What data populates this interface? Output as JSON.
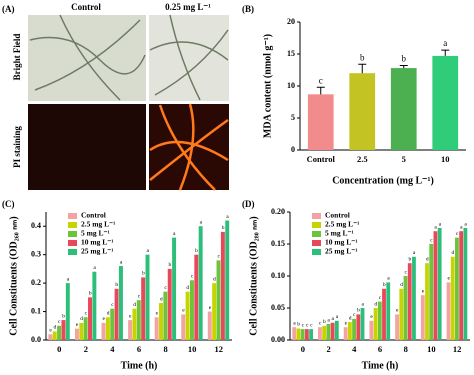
{
  "panel_a": {
    "panel_label": "(A)",
    "columns": [
      "Control",
      "0.25 mg L⁻¹"
    ],
    "rows": [
      "Bright Field",
      "PI staining"
    ]
  },
  "chart_data": [
    {
      "type": "bar",
      "panel_label": "(B)",
      "y_label": "MDA content (nmol g⁻¹)",
      "x_label": "Concentration (mg L⁻¹)",
      "categories": [
        "Control",
        "2.5",
        "5",
        "10"
      ],
      "values": [
        8.7,
        12.0,
        12.8,
        14.7
      ],
      "errors": [
        1.1,
        1.4,
        0.4,
        0.9
      ],
      "letters": [
        "c",
        "b",
        "b",
        "a"
      ],
      "colors": [
        "#f28b8b",
        "#c3c323",
        "#4cb050",
        "#2fcc7a"
      ],
      "ylim": [
        0,
        20
      ],
      "yticks": [
        0,
        5,
        10,
        15,
        20
      ]
    },
    {
      "type": "grouped_bar",
      "panel_label": "(C)",
      "y_label": "Cell Constituents (OD₂₆₀ ₙₘ)",
      "x_label": "Time (h)",
      "categories": [
        "0",
        "2",
        "4",
        "6",
        "8",
        "10",
        "12"
      ],
      "series": [
        {
          "name": "Control",
          "color": "#f4a3a3",
          "values": [
            0.02,
            0.04,
            0.06,
            0.07,
            0.08,
            0.09,
            0.1
          ],
          "letters": [
            "e",
            "e",
            "e",
            "e",
            "e",
            "e",
            "e"
          ]
        },
        {
          "name": "2.5 mg L⁻¹",
          "color": "#c8d400",
          "values": [
            0.03,
            0.06,
            0.08,
            0.11,
            0.13,
            0.17,
            0.2
          ],
          "letters": [
            "d",
            "d",
            "d",
            "d",
            "d",
            "d",
            "d"
          ]
        },
        {
          "name": "5 mg L⁻¹",
          "color": "#6cc43c",
          "values": [
            0.05,
            0.08,
            0.11,
            0.14,
            0.17,
            0.21,
            0.28
          ],
          "letters": [
            "c",
            "c",
            "c",
            "c",
            "c",
            "c",
            "c"
          ]
        },
        {
          "name": "10 mg L⁻¹",
          "color": "#e8495a",
          "values": [
            0.07,
            0.15,
            0.18,
            0.22,
            0.25,
            0.3,
            0.38
          ],
          "letters": [
            "b",
            "b",
            "b",
            "b",
            "b",
            "b",
            "b"
          ]
        },
        {
          "name": "25 mg L⁻¹",
          "color": "#2dbf7a",
          "values": [
            0.2,
            0.24,
            0.26,
            0.3,
            0.36,
            0.4,
            0.42
          ],
          "letters": [
            "a",
            "a",
            "a",
            "a",
            "a",
            "a",
            "a"
          ]
        }
      ],
      "ylim": [
        0,
        0.45
      ],
      "yticks": [
        {
          "value": 0,
          "label": "0.0"
        },
        0.1,
        0.2,
        0.3,
        0.4
      ]
    },
    {
      "type": "grouped_bar",
      "panel_label": "(D)",
      "y_label": "Cell Constituents (OD₂₈₀ ₙₘ)",
      "x_label": "Time (h)",
      "categories": [
        "0",
        "2",
        "4",
        "6",
        "8",
        "10",
        "12"
      ],
      "series": [
        {
          "name": "Control",
          "color": "#f4a3a3",
          "values": [
            0.02,
            0.02,
            0.02,
            0.03,
            0.04,
            0.07,
            0.09
          ],
          "letters": [
            "a",
            "c",
            "e",
            "e",
            "e",
            "e",
            "e"
          ]
        },
        {
          "name": "2.5 mg L⁻¹",
          "color": "#c8d400",
          "values": [
            0.018,
            0.022,
            0.028,
            0.05,
            0.08,
            0.12,
            0.13
          ],
          "letters": [
            "b",
            "b",
            "d",
            "d",
            "d",
            "d",
            "d"
          ]
        },
        {
          "name": "5 mg L⁻¹",
          "color": "#6cc43c",
          "values": [
            0.017,
            0.025,
            0.033,
            0.06,
            0.1,
            0.15,
            0.16
          ],
          "letters": [
            "c",
            "a",
            "c",
            "c",
            "c",
            "c",
            "c"
          ]
        },
        {
          "name": "10 mg L⁻¹",
          "color": "#e8495a",
          "values": [
            0.017,
            0.027,
            0.04,
            0.08,
            0.12,
            0.17,
            0.17
          ],
          "letters": [
            "c",
            "a",
            "b",
            "b",
            "b",
            "a",
            "a"
          ]
        },
        {
          "name": "25 mg L⁻¹",
          "color": "#2dbf7a",
          "values": [
            0.017,
            0.03,
            0.05,
            0.09,
            0.13,
            0.175,
            0.175
          ],
          "letters": [
            "c",
            "a",
            "a",
            "a",
            "a",
            "a",
            "a"
          ]
        }
      ],
      "ylim": [
        0,
        0.2
      ],
      "yticks": [
        {
          "value": 0,
          "label": "0.00"
        },
        0.05,
        {
          "value": 0.1,
          "label": "0.10"
        },
        0.15,
        {
          "value": 0.2,
          "label": "0.20"
        }
      ]
    }
  ]
}
